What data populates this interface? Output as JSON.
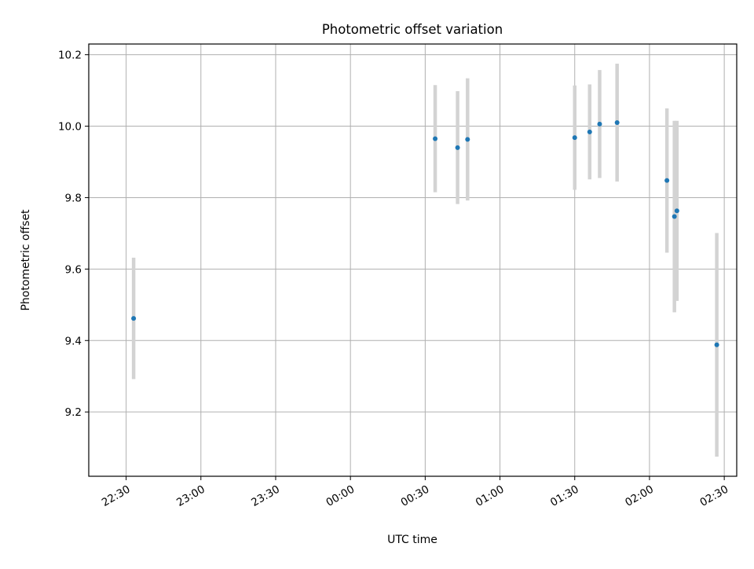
{
  "chart_data": {
    "type": "scatter",
    "title": "Photometric offset variation",
    "xlabel": "UTC time",
    "ylabel": "Photometric offset",
    "grid": true,
    "xlim": [
      "22:15",
      "02:35"
    ],
    "ylim": [
      9.02,
      10.23
    ],
    "x_ticks": [
      "22:30",
      "23:00",
      "23:30",
      "00:00",
      "00:30",
      "01:00",
      "01:30",
      "02:00",
      "02:30"
    ],
    "y_ticks": [
      9.2,
      9.4,
      9.6,
      9.8,
      10.0,
      10.2
    ],
    "points": [
      {
        "x": "22:33",
        "y": 9.462,
        "err": 0.17
      },
      {
        "x": "00:34",
        "y": 9.965,
        "err": 0.15
      },
      {
        "x": "00:43",
        "y": 9.94,
        "err": 0.158
      },
      {
        "x": "00:47",
        "y": 9.963,
        "err": 0.171
      },
      {
        "x": "01:30",
        "y": 9.968,
        "err": 0.146
      },
      {
        "x": "01:36",
        "y": 9.984,
        "err": 0.133
      },
      {
        "x": "01:40",
        "y": 10.006,
        "err": 0.151
      },
      {
        "x": "01:47",
        "y": 10.01,
        "err": 0.165
      },
      {
        "x": "02:07",
        "y": 9.848,
        "err": 0.202
      },
      {
        "x": "02:10",
        "y": 9.747,
        "err": 0.268
      },
      {
        "x": "02:11",
        "y": 9.763,
        "err": 0.252
      },
      {
        "x": "02:27",
        "y": 9.388,
        "err": 0.313
      }
    ],
    "colors": {
      "point": "#1f77b4",
      "errorbar": "#d3d3d3",
      "grid": "#b0b0b0",
      "axis": "#000000"
    }
  }
}
